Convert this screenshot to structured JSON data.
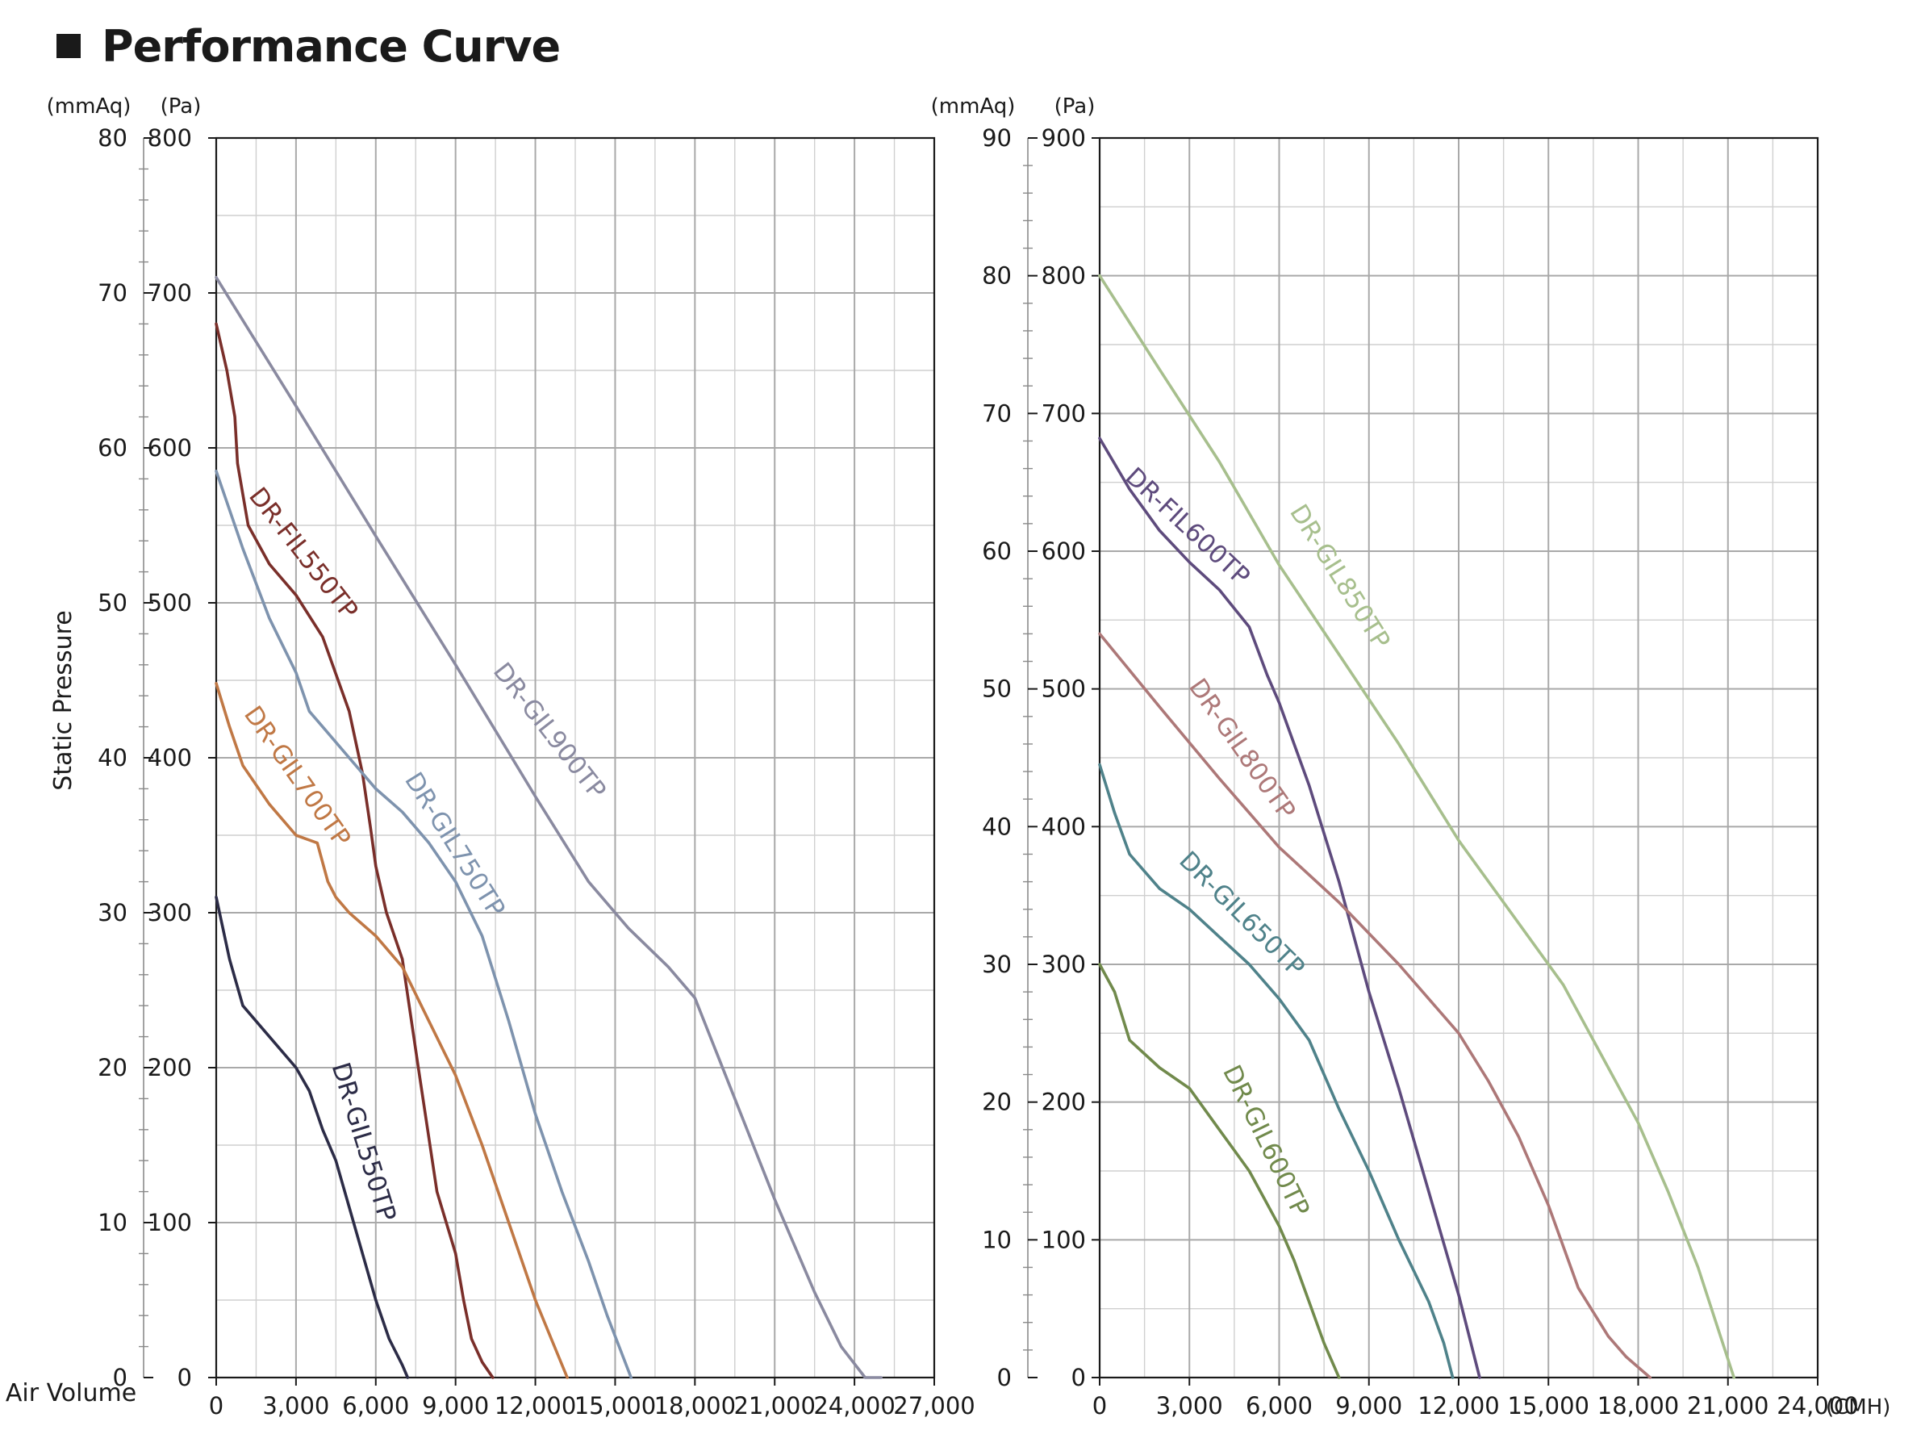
{
  "page_title": "Performance Curve",
  "chart_data": [
    {
      "type": "line",
      "title": "Performance Curve",
      "ylabel": "Static Pressure",
      "xlabel": "Air Volume",
      "x_unit": "",
      "y_unit_left": "(mmAq)",
      "y_unit_right": "(Pa)",
      "xlim": [
        0,
        27000
      ],
      "ylim_pa": [
        0,
        800
      ],
      "ylim_mmaq": [
        0,
        80
      ],
      "x_ticks": [
        "0",
        "3,000",
        "6,000",
        "9,000",
        "12,000",
        "15,000",
        "18,000",
        "21,000",
        "24,000",
        "27,000"
      ],
      "y_ticks_pa": [
        "0",
        "100",
        "200",
        "300",
        "400",
        "500",
        "600",
        "700",
        "800"
      ],
      "y_ticks_mmaq": [
        "0",
        "10",
        "20",
        "30",
        "40",
        "50",
        "60",
        "70",
        "80"
      ],
      "grid": true,
      "series": [
        {
          "name": "DR-FIL550TP",
          "color": "#7a2f2a",
          "x": [
            0,
            400,
            700,
            800,
            1200,
            2000,
            3000,
            4000,
            5000,
            5500,
            5800,
            6000,
            6400,
            7000,
            7600,
            8300,
            9000,
            9300,
            9600,
            10000,
            10400
          ],
          "y": [
            680,
            650,
            620,
            590,
            550,
            525,
            505,
            478,
            430,
            390,
            355,
            330,
            300,
            270,
            200,
            120,
            80,
            50,
            25,
            10,
            0
          ]
        },
        {
          "name": "DR-GIL550TP",
          "color": "#2c2c47",
          "x": [
            0,
            500,
            1000,
            2000,
            3000,
            3500,
            4000,
            4500,
            5000,
            5500,
            6000,
            6500,
            7000,
            7200
          ],
          "y": [
            310,
            270,
            240,
            220,
            200,
            185,
            160,
            140,
            110,
            80,
            50,
            25,
            8,
            0
          ]
        },
        {
          "name": "DR-GIL700TP",
          "color": "#c07845",
          "x": [
            0,
            500,
            1000,
            2000,
            3000,
            3800,
            4200,
            4500,
            5000,
            6000,
            7000,
            8000,
            9000,
            10000,
            11000,
            12000,
            12600,
            13200
          ],
          "y": [
            448,
            420,
            395,
            370,
            350,
            345,
            320,
            310,
            300,
            285,
            265,
            230,
            195,
            150,
            100,
            50,
            25,
            0
          ]
        },
        {
          "name": "DR-GIL750TP",
          "color": "#7e93ae",
          "x": [
            0,
            1000,
            2000,
            3000,
            3500,
            4000,
            5000,
            6000,
            7000,
            8000,
            9000,
            10000,
            11000,
            12000,
            13000,
            14000,
            14700,
            15600
          ],
          "y": [
            585,
            535,
            490,
            455,
            430,
            420,
            400,
            380,
            365,
            345,
            320,
            285,
            230,
            170,
            120,
            75,
            40,
            0
          ]
        },
        {
          "name": "DR-GIL900TP",
          "color": "#8a8aa0",
          "x": [
            0,
            3000,
            6000,
            9000,
            12000,
            14000,
            15500,
            17000,
            18000,
            19500,
            21000,
            22500,
            23500,
            24400,
            25000
          ],
          "y": [
            710,
            627,
            543,
            460,
            375,
            320,
            290,
            265,
            245,
            180,
            115,
            55,
            20,
            0,
            0
          ]
        }
      ]
    },
    {
      "type": "line",
      "title": "",
      "ylabel": "",
      "xlabel": "",
      "x_unit": "(CMH)",
      "y_unit_left": "(mmAq)",
      "y_unit_right": "(Pa)",
      "xlim": [
        0,
        24000
      ],
      "ylim_pa": [
        0,
        900
      ],
      "ylim_mmaq": [
        0,
        90
      ],
      "x_ticks": [
        "0",
        "3,000",
        "6,000",
        "9,000",
        "12,000",
        "15,000",
        "18,000",
        "21,000",
        "24,000"
      ],
      "y_ticks_pa": [
        "0",
        "100",
        "200",
        "300",
        "400",
        "500",
        "600",
        "700",
        "800",
        "900"
      ],
      "y_ticks_mmaq": [
        "0",
        "10",
        "20",
        "30",
        "40",
        "50",
        "60",
        "70",
        "80",
        "90"
      ],
      "grid": true,
      "series": [
        {
          "name": "DR-GIL850TP",
          "color": "#a7bf8d",
          "x": [
            0,
            2000,
            4000,
            6000,
            8000,
            10000,
            12000,
            14000,
            15500,
            17000,
            18000,
            19000,
            20000,
            20600,
            21200
          ],
          "y": [
            800,
            732,
            665,
            590,
            525,
            460,
            390,
            330,
            285,
            225,
            185,
            135,
            80,
            40,
            0
          ]
        },
        {
          "name": "DR-FIL600TP",
          "color": "#5e4b7d",
          "x": [
            0,
            1000,
            2000,
            3000,
            4000,
            5000,
            5600,
            6000,
            6500,
            7000,
            8000,
            9000,
            10000,
            11000,
            12000,
            12700
          ],
          "y": [
            682,
            645,
            615,
            592,
            572,
            545,
            510,
            490,
            460,
            430,
            360,
            280,
            210,
            135,
            60,
            0
          ]
        },
        {
          "name": "DR-GIL800TP",
          "color": "#ad7878",
          "x": [
            0,
            2000,
            4000,
            6000,
            8000,
            10000,
            12000,
            13000,
            14000,
            15000,
            16000,
            17000,
            17600,
            18400
          ],
          "y": [
            540,
            487,
            435,
            385,
            345,
            300,
            250,
            215,
            175,
            125,
            65,
            30,
            15,
            0
          ]
        },
        {
          "name": "DR-GIL650TP",
          "color": "#4f828a",
          "x": [
            0,
            500,
            1000,
            2000,
            3000,
            4000,
            5000,
            6000,
            7000,
            8000,
            9000,
            10000,
            11000,
            11500,
            11800
          ],
          "y": [
            445,
            410,
            380,
            355,
            340,
            320,
            300,
            275,
            245,
            195,
            150,
            100,
            55,
            25,
            0
          ]
        },
        {
          "name": "DR-GIL600TP",
          "color": "#718a4c",
          "x": [
            0,
            500,
            1000,
            2000,
            3000,
            3500,
            4000,
            4500,
            5000,
            5500,
            6000,
            6500,
            7000,
            7500,
            8000
          ],
          "y": [
            300,
            280,
            245,
            225,
            210,
            195,
            180,
            165,
            150,
            130,
            110,
            85,
            55,
            25,
            0
          ]
        }
      ]
    }
  ]
}
